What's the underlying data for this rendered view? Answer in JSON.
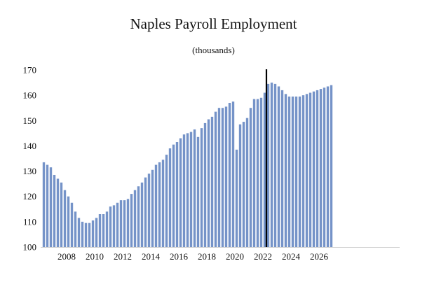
{
  "chart_data": {
    "type": "bar",
    "title": "Naples Payroll Employment",
    "subtitle": "(thousands)",
    "xlabel": "",
    "ylabel": "",
    "ylim": [
      100,
      170
    ],
    "yticks": [
      100,
      110,
      120,
      130,
      140,
      150,
      160,
      170
    ],
    "xtick_labels": [
      "2008",
      "2010",
      "2012",
      "2014",
      "2016",
      "2018",
      "2020",
      "2022",
      "2024",
      "2026"
    ],
    "bar_color": "#7593c8",
    "marker_color": "#000000",
    "grid": false,
    "start": "2006 Q3",
    "forecast_marker_at": "2022 Q2",
    "series": [
      {
        "values": [
          133.5,
          132.5,
          131.5,
          128.5,
          127.0,
          125.5,
          122.5,
          120.0,
          117.5,
          114.0,
          111.5,
          110.0,
          109.5,
          109.5,
          110.5,
          111.5,
          113.0,
          113.0,
          114.0,
          116.0,
          116.5,
          117.5,
          118.5,
          118.5,
          119.0,
          121.0,
          122.5,
          124.0,
          125.5,
          127.5,
          129.0,
          130.5,
          132.5,
          133.5,
          134.5,
          136.5,
          139.0,
          140.5,
          141.5,
          143.0,
          144.5,
          145.0,
          145.5,
          146.5,
          143.5,
          147.0,
          149.0,
          150.5,
          151.5,
          153.5,
          155.0,
          155.0,
          155.5,
          157.0,
          157.5,
          138.5,
          148.5,
          149.5,
          151.0,
          155.0,
          158.5,
          158.5,
          159.0,
          161.0,
          164.5,
          165.0,
          164.5,
          163.5,
          162.0,
          160.5,
          159.5,
          159.5,
          159.5,
          159.5,
          160.0,
          160.5,
          161.0,
          161.5,
          162.0,
          162.5,
          163.0,
          163.5,
          164.0
        ]
      }
    ]
  }
}
